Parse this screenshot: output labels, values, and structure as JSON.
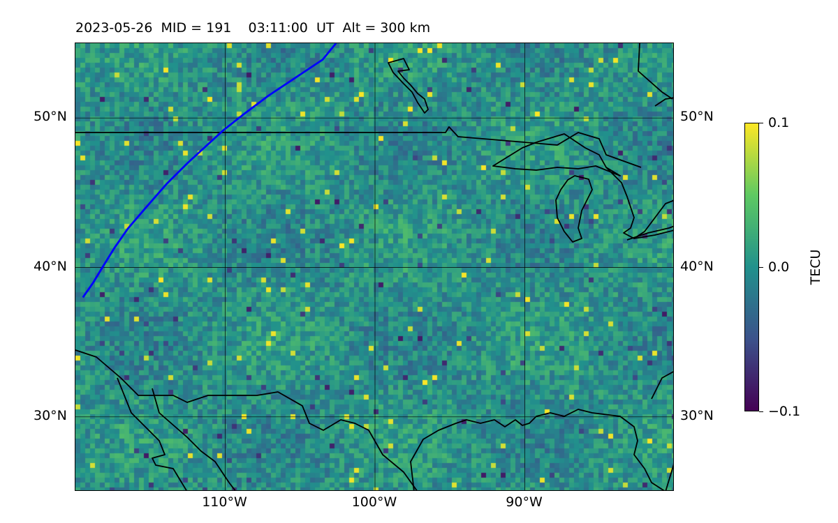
{
  "title": "2023-05-26  MID = 191    03:11:00  UT  Alt = 300 km",
  "map": {
    "projection": "equirectangular",
    "lon_range": [
      -120,
      -80
    ],
    "lat_range": [
      25,
      55
    ],
    "gridlines": true,
    "lat_ticks": [
      {
        "value": 50,
        "label": "50°N"
      },
      {
        "value": 40,
        "label": "40°N"
      },
      {
        "value": 30,
        "label": "30°N"
      }
    ],
    "lon_ticks": [
      {
        "value": -110,
        "label": "110°W"
      },
      {
        "value": -100,
        "label": "100°W"
      },
      {
        "value": -90,
        "label": "90°W"
      }
    ],
    "colormap": "viridis",
    "background_color": "#21918c",
    "coastline_color": "#000000",
    "track_color": "#0000ff",
    "track_lonlat": [
      [
        -119.5,
        38.0
      ],
      [
        -118.8,
        39.0
      ],
      [
        -118.2,
        40.0
      ],
      [
        -117.4,
        41.3
      ],
      [
        -116.5,
        42.6
      ],
      [
        -115.3,
        44.0
      ],
      [
        -113.9,
        45.6
      ],
      [
        -112.5,
        47.0
      ],
      [
        -111.3,
        48.1
      ],
      [
        -110.1,
        49.2
      ],
      [
        -108.7,
        50.3
      ],
      [
        -107.1,
        51.5
      ],
      [
        -105.3,
        52.7
      ],
      [
        -103.5,
        53.9
      ],
      [
        -102.6,
        55.0
      ]
    ]
  },
  "colorbar": {
    "label": "TECU",
    "ticks": [
      {
        "value": 0.1,
        "label": "0.1"
      },
      {
        "value": 0.0,
        "label": "0.0"
      },
      {
        "value": -0.1,
        "label": "−0.1"
      }
    ],
    "vmin": -0.1,
    "vmax": 0.1
  }
}
